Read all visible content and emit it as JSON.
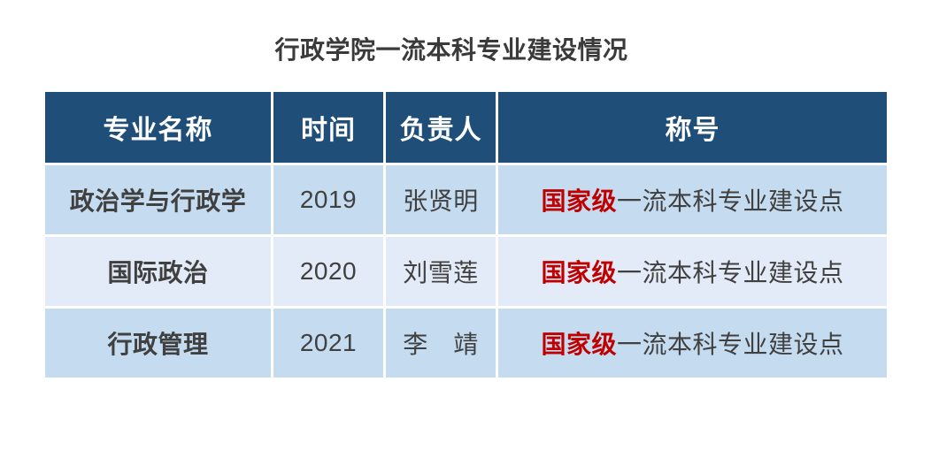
{
  "page": {
    "title": "行政学院一流本科专业建设情况"
  },
  "colors": {
    "header_bg": "#1f4e79",
    "header_text": "#ffffff",
    "row_odd_bg": "#c5dcf0",
    "row_even_bg": "#e2ebf7",
    "body_text": "#404040",
    "title_text": "#3a3a3a",
    "highlight_red": "#c00000"
  },
  "table": {
    "columns": [
      {
        "label": "专业名称"
      },
      {
        "label": "时间"
      },
      {
        "label": "负责人"
      },
      {
        "label": "称号"
      }
    ],
    "rows": [
      {
        "major": "政治学与行政学",
        "year": "2019",
        "leader": "张贤明",
        "title_prefix": "国家级",
        "title_rest": "一流本科专业建设点"
      },
      {
        "major": "国际政治",
        "year": "2020",
        "leader": "刘雪莲",
        "title_prefix": "国家级",
        "title_rest": "一流本科专业建设点"
      },
      {
        "major": "行政管理",
        "year": "2021",
        "leader": "李　靖",
        "title_prefix": "国家级",
        "title_rest": "一流本科专业建设点"
      }
    ]
  }
}
